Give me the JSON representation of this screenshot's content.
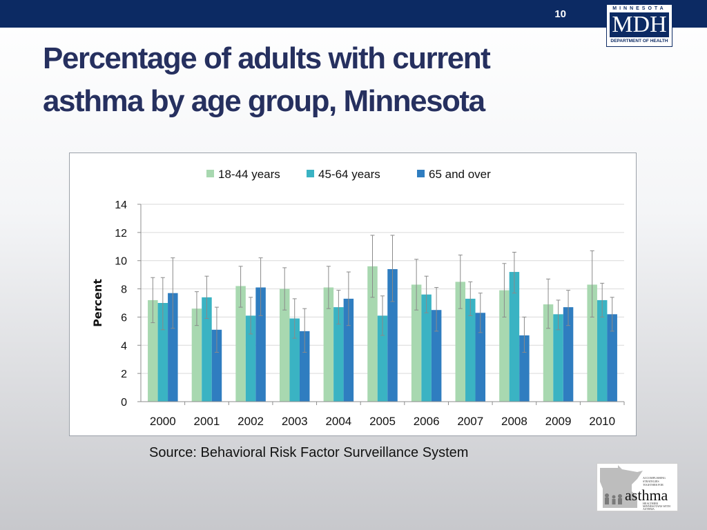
{
  "slide": {
    "number": "10",
    "title_line1": "Percentage of adults with current",
    "title_line2": "asthma by age group, Minnesota",
    "source": "Source: Behavioral Risk Factor Surveillance System"
  },
  "logo_mdh": {
    "state": "MINNESOTA",
    "mark": "MDH",
    "dept": "DEPARTMENT OF HEALTH",
    "color": "#0c2a63"
  },
  "logo_asthma": {
    "word": "asthma",
    "tagline": "Accomplishing Strategies Together for Healthier Minnesotans with Asthma"
  },
  "chart_data": {
    "type": "bar",
    "title": "",
    "xlabel": "",
    "ylabel": "Percent",
    "ylim": [
      0,
      14
    ],
    "yticks": [
      0,
      2,
      4,
      6,
      8,
      10,
      12,
      14
    ],
    "grid": true,
    "legend_position": "top",
    "categories": [
      "2000",
      "2001",
      "2002",
      "2003",
      "2004",
      "2005",
      "2006",
      "2007",
      "2008",
      "2009",
      "2010"
    ],
    "series": [
      {
        "name": "18-44 years",
        "color": "#a8d8b0",
        "values": [
          7.2,
          6.6,
          8.2,
          8.0,
          8.1,
          9.6,
          8.3,
          8.5,
          7.9,
          6.9,
          8.3
        ],
        "error_low": [
          5.6,
          5.4,
          6.7,
          6.5,
          6.6,
          7.4,
          6.5,
          6.6,
          6.0,
          5.2,
          6.0
        ],
        "error_high": [
          8.8,
          7.8,
          9.6,
          9.5,
          9.6,
          11.8,
          10.1,
          10.4,
          9.8,
          8.7,
          10.7
        ]
      },
      {
        "name": "45-64 years",
        "color": "#3ab3c3",
        "values": [
          7.0,
          7.4,
          6.1,
          5.9,
          6.7,
          6.1,
          7.6,
          7.3,
          9.2,
          6.2,
          7.2
        ],
        "error_low": [
          5.1,
          5.9,
          4.8,
          4.5,
          5.5,
          4.7,
          6.3,
          6.1,
          7.7,
          5.1,
          6.0
        ],
        "error_high": [
          8.8,
          8.9,
          7.4,
          7.3,
          7.9,
          7.5,
          8.9,
          8.5,
          10.6,
          7.2,
          8.4
        ]
      },
      {
        "name": "65 and over",
        "color": "#2f7dc0",
        "values": [
          7.7,
          5.1,
          8.1,
          5.0,
          7.3,
          9.4,
          6.5,
          6.3,
          4.7,
          6.7,
          6.2
        ],
        "error_low": [
          5.2,
          3.5,
          6.1,
          3.5,
          5.4,
          7.1,
          5.0,
          4.9,
          3.5,
          5.4,
          5.0
        ],
        "error_high": [
          10.2,
          6.7,
          10.2,
          6.6,
          9.2,
          11.8,
          8.1,
          7.7,
          6.0,
          7.9,
          7.4
        ]
      }
    ]
  }
}
